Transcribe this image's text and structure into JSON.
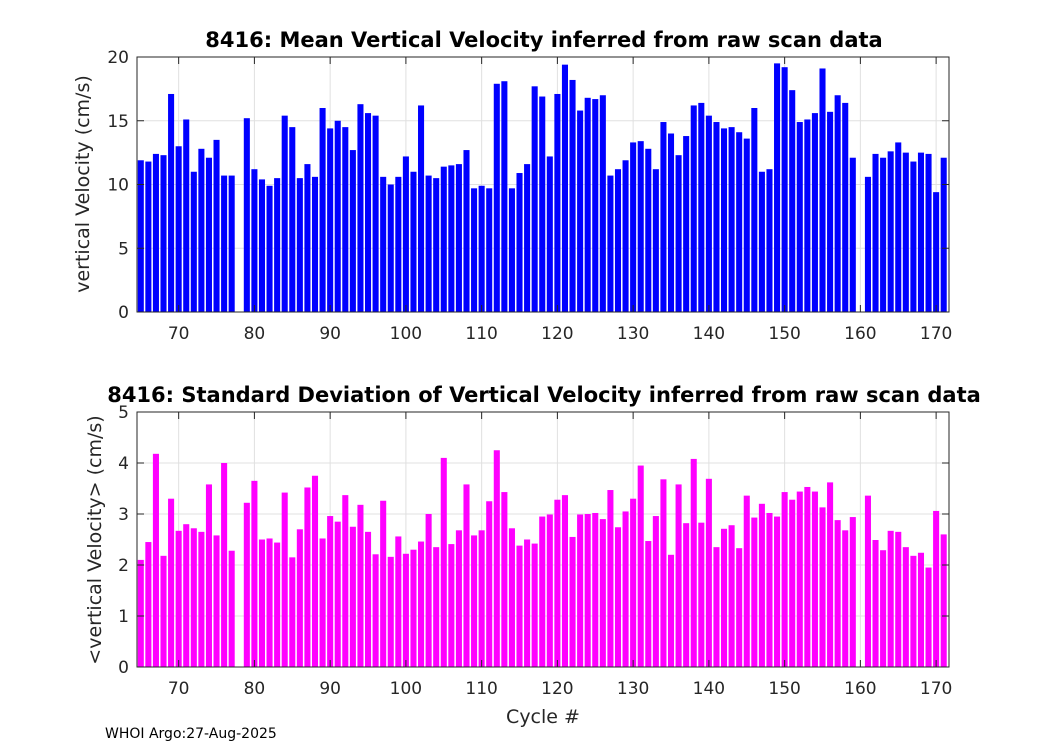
{
  "footer": "WHOI Argo:27-Aug-2025",
  "colors": {
    "top_bar": "#0000ff",
    "bottom_bar": "#ff00ff",
    "grid": "#e0e0e0",
    "axis": "#262626"
  },
  "chart_data": [
    {
      "type": "bar",
      "title": "8416: Mean Vertical Velocity inferred from raw scan data",
      "xlabel": "",
      "ylabel": "vertical Velocity (cm/s)",
      "xlim": [
        64.5,
        171.7
      ],
      "ylim": [
        0,
        20
      ],
      "xticks": [
        70,
        80,
        90,
        100,
        110,
        120,
        130,
        140,
        150,
        160,
        170
      ],
      "yticks": [
        0,
        5,
        10,
        15,
        20
      ],
      "grid": true,
      "color": "#0000ff",
      "x": [
        65,
        66,
        67,
        68,
        69,
        70,
        71,
        72,
        73,
        74,
        75,
        76,
        77,
        78,
        79,
        80,
        81,
        82,
        83,
        84,
        85,
        86,
        87,
        88,
        89,
        90,
        91,
        92,
        93,
        94,
        95,
        96,
        97,
        98,
        99,
        100,
        101,
        102,
        103,
        104,
        105,
        106,
        107,
        108,
        109,
        110,
        111,
        112,
        113,
        114,
        115,
        116,
        117,
        118,
        119,
        120,
        121,
        122,
        123,
        124,
        125,
        126,
        127,
        128,
        129,
        130,
        131,
        132,
        133,
        134,
        135,
        136,
        137,
        138,
        139,
        140,
        141,
        142,
        143,
        144,
        145,
        146,
        147,
        148,
        149,
        150,
        151,
        152,
        153,
        154,
        155,
        156,
        157,
        158,
        159,
        160,
        161,
        162,
        163,
        164,
        165,
        166,
        167,
        168,
        169,
        170,
        171
      ],
      "values": [
        11.9,
        11.8,
        12.4,
        12.3,
        17.1,
        13.0,
        15.1,
        11.0,
        12.8,
        12.1,
        13.5,
        10.7,
        10.7,
        0,
        15.2,
        11.2,
        10.4,
        9.9,
        10.5,
        15.4,
        14.5,
        10.5,
        11.6,
        10.6,
        16.0,
        14.4,
        15.0,
        14.5,
        12.7,
        16.3,
        15.6,
        15.4,
        10.6,
        10.0,
        10.6,
        12.2,
        11.0,
        16.2,
        10.7,
        10.5,
        11.4,
        11.5,
        11.6,
        12.7,
        9.7,
        9.9,
        9.7,
        17.9,
        18.1,
        9.7,
        10.9,
        11.6,
        17.7,
        16.9,
        12.2,
        17.1,
        19.4,
        18.2,
        15.8,
        16.8,
        16.7,
        17.0,
        10.7,
        11.2,
        11.9,
        13.3,
        13.4,
        12.8,
        11.2,
        14.9,
        14.0,
        12.3,
        13.8,
        16.2,
        16.4,
        15.4,
        14.9,
        14.4,
        14.5,
        14.1,
        13.6,
        16.0,
        11.0,
        11.2,
        19.5,
        19.2,
        17.4,
        14.9,
        15.1,
        15.6,
        19.1,
        15.7,
        17.0,
        16.4,
        12.1,
        0,
        10.6,
        12.4,
        12.1,
        12.6,
        13.3,
        12.5,
        11.8,
        12.5,
        12.4,
        9.4,
        12.1
      ]
    },
    {
      "type": "bar",
      "title": "8416: Standard Deviation of Vertical Velocity inferred from raw scan data",
      "xlabel": "Cycle #",
      "ylabel": "<vertical Velocity> (cm/s)",
      "xlim": [
        64.5,
        171.7
      ],
      "ylim": [
        0,
        5
      ],
      "xticks": [
        70,
        80,
        90,
        100,
        110,
        120,
        130,
        140,
        150,
        160,
        170
      ],
      "yticks": [
        0,
        1,
        2,
        3,
        4,
        5
      ],
      "grid": true,
      "color": "#ff00ff",
      "x": [
        65,
        66,
        67,
        68,
        69,
        70,
        71,
        72,
        73,
        74,
        75,
        76,
        77,
        78,
        79,
        80,
        81,
        82,
        83,
        84,
        85,
        86,
        87,
        88,
        89,
        90,
        91,
        92,
        93,
        94,
        95,
        96,
        97,
        98,
        99,
        100,
        101,
        102,
        103,
        104,
        105,
        106,
        107,
        108,
        109,
        110,
        111,
        112,
        113,
        114,
        115,
        116,
        117,
        118,
        119,
        120,
        121,
        122,
        123,
        124,
        125,
        126,
        127,
        128,
        129,
        130,
        131,
        132,
        133,
        134,
        135,
        136,
        137,
        138,
        139,
        140,
        141,
        142,
        143,
        144,
        145,
        146,
        147,
        148,
        149,
        150,
        151,
        152,
        153,
        154,
        155,
        156,
        157,
        158,
        159,
        160,
        161,
        162,
        163,
        164,
        165,
        166,
        167,
        168,
        169,
        170,
        171
      ],
      "values": [
        2.1,
        2.45,
        4.18,
        2.18,
        3.3,
        2.67,
        2.8,
        2.72,
        2.65,
        3.58,
        2.58,
        4.0,
        2.28,
        0,
        3.22,
        3.65,
        2.5,
        2.52,
        2.44,
        3.42,
        2.15,
        2.7,
        3.52,
        3.75,
        2.52,
        2.96,
        2.85,
        3.37,
        2.75,
        3.18,
        2.65,
        2.21,
        3.26,
        2.16,
        2.56,
        2.22,
        2.3,
        2.46,
        3.0,
        2.35,
        4.1,
        2.41,
        2.68,
        3.58,
        2.58,
        2.68,
        3.25,
        4.25,
        3.43,
        2.72,
        2.38,
        2.5,
        2.42,
        2.95,
        2.99,
        3.28,
        3.37,
        2.55,
        2.99,
        3.0,
        3.02,
        2.9,
        3.47,
        2.74,
        3.05,
        3.3,
        3.95,
        2.47,
        2.96,
        3.68,
        2.2,
        3.58,
        2.82,
        4.08,
        2.83,
        3.69,
        2.35,
        2.71,
        2.78,
        2.33,
        3.36,
        2.93,
        3.2,
        3.02,
        2.95,
        3.43,
        3.28,
        3.44,
        3.53,
        3.44,
        3.13,
        3.62,
        2.88,
        2.68,
        2.94,
        0,
        3.36,
        2.49,
        2.29,
        2.67,
        2.65,
        2.35,
        2.18,
        2.24,
        1.95,
        3.06,
        2.6
      ]
    }
  ]
}
